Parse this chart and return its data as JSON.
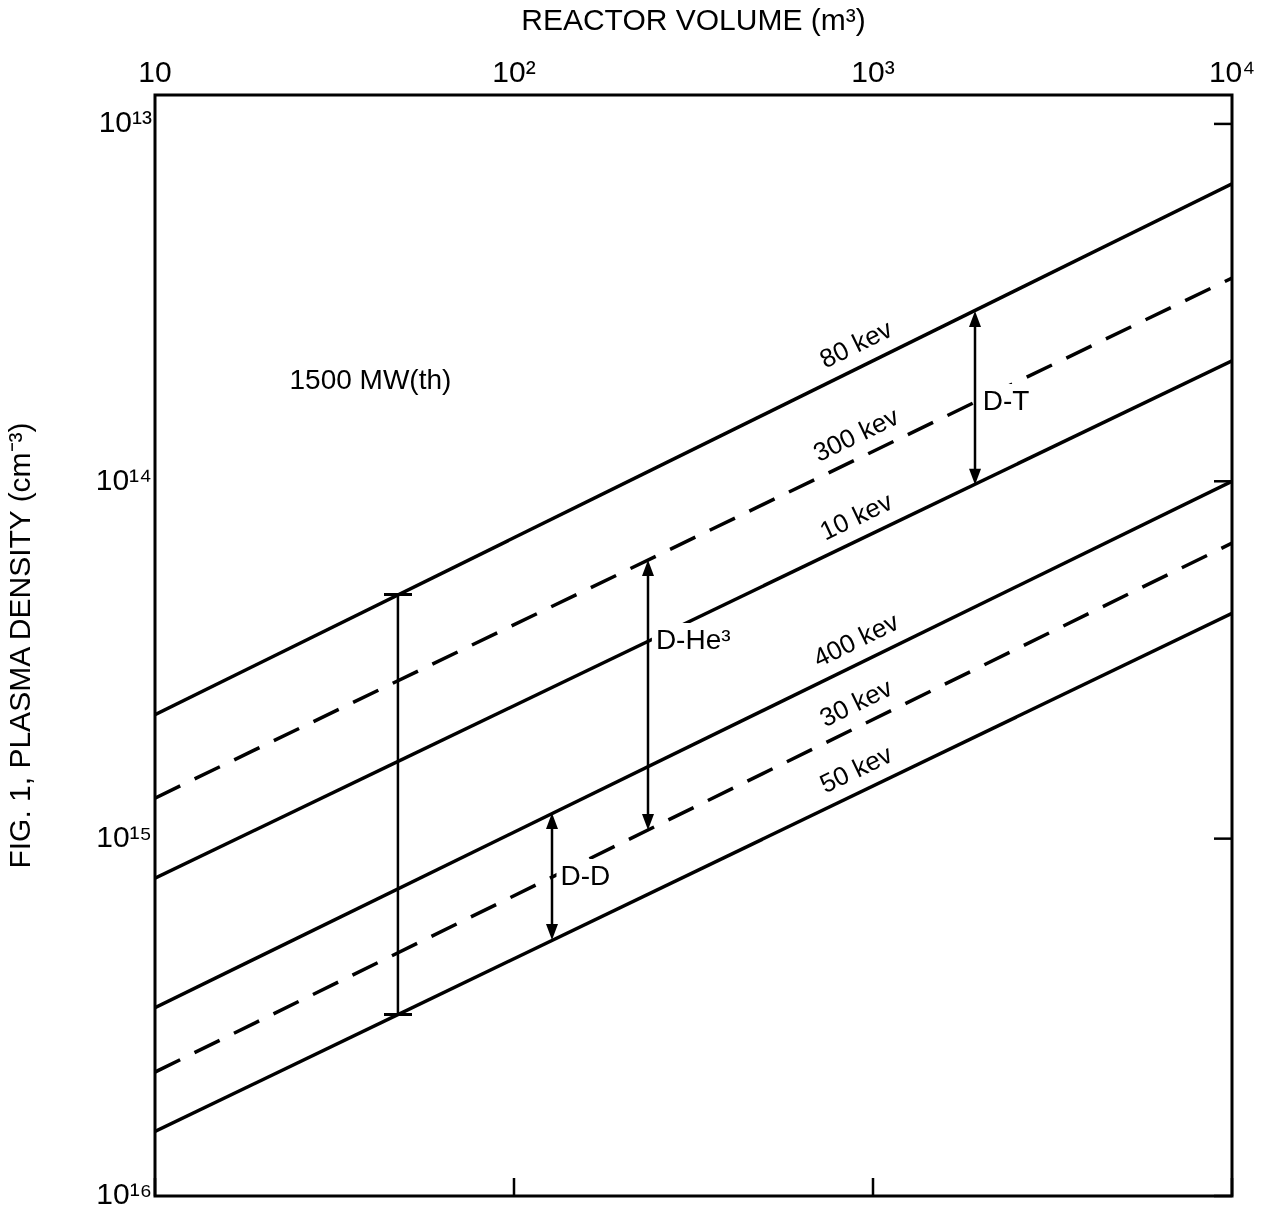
{
  "chart_data": {
    "type": "line",
    "xlabel": "REACTOR VOLUME (m³)",
    "ylabel": "FIG. 1, PLASMA DENSITY (cm⁻³)",
    "xlim": [
      10,
      10000
    ],
    "xticks": [
      10,
      {
        "value": 100,
        "label": "10²"
      },
      {
        "value": 1000,
        "label": "10³"
      },
      {
        "value": 10000,
        "label": "10⁴"
      }
    ],
    "ylim": [
      1e+16,
      8300000000000.0
    ],
    "yticks": [
      {
        "value": 10000000000000.0,
        "label": "10¹³"
      },
      {
        "value": 100000000000000.0,
        "label": "10¹⁴"
      },
      {
        "value": 1000000000000000.0,
        "label": "10¹⁵"
      },
      {
        "value": 1e+16,
        "label": "10¹⁶"
      }
    ],
    "log": "xy",
    "grid": false,
    "legend": false,
    "marker": "none",
    "x": [
      10,
      10000
    ],
    "series": [
      {
        "name": "80 kev",
        "color": "#000000",
        "line_style": "solid",
        "values": [
          450000000000000.0,
          14700000000000.0
        ]
      },
      {
        "name": "300 kev",
        "color": "#000000",
        "line_style": "dashed",
        "values": [
          770000000000000.0,
          27000000000000.0
        ]
      },
      {
        "name": "10 kev",
        "color": "#000000",
        "line_style": "solid",
        "values": [
          1290000000000000.0,
          46000000000000.0
        ]
      },
      {
        "name": "400 kev",
        "color": "#000000",
        "line_style": "solid",
        "values": [
          2970000000000000.0,
          100000000000000.0
        ]
      },
      {
        "name": "30 kev",
        "color": "#000000",
        "line_style": "dashed",
        "values": [
          4500000000000000.0,
          149000000000000.0
        ]
      },
      {
        "name": "50 kev",
        "color": "#000000",
        "line_style": "solid",
        "values": [
          6600000000000000.0,
          234000000000000.0
        ]
      }
    ],
    "ref_lines": [
      {
        "axis": "x",
        "value": 47.5
      }
    ],
    "annotations": [
      "1500 MW(th)",
      {
        "text": "D-T",
        "x": 1920,
        "y": 60000000000000.0
      },
      {
        "text": "D-He³",
        "x": 236,
        "y": 280000000000000.0
      },
      {
        "text": "D-D",
        "x": 128,
        "y": 1280000000000000.0
      }
    ]
  }
}
